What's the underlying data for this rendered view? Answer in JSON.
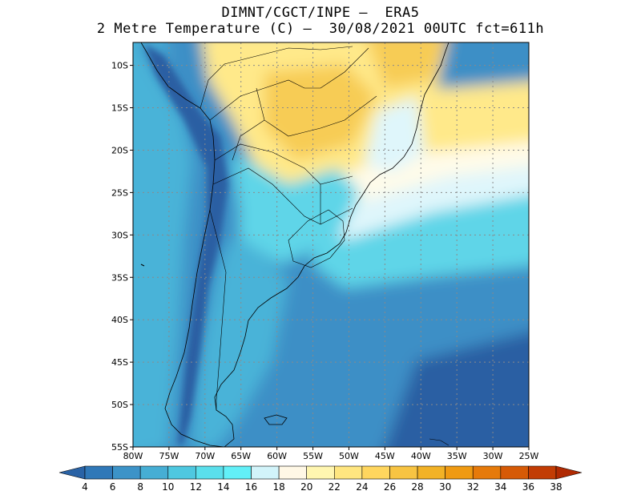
{
  "title_line1": "DIMNT/CGCT/INPE –  ERA5",
  "title_line2": "2 Metre Temperature (C) –  30/08/2021 00UTC fct=611h",
  "lat_labels": [
    "10S",
    "15S",
    "20S",
    "25S",
    "30S",
    "35S",
    "40S",
    "45S",
    "50S",
    "55S"
  ],
  "lat_values": [
    -10,
    -15,
    -20,
    -25,
    -30,
    -35,
    -40,
    -45,
    -50,
    -55
  ],
  "lon_labels": [
    "80W",
    "75W",
    "70W",
    "65W",
    "60W",
    "55W",
    "50W",
    "45W",
    "40W",
    "35W",
    "30W",
    "25W"
  ],
  "lon_values": [
    -80,
    -75,
    -70,
    -65,
    -60,
    -55,
    -50,
    -45,
    -40,
    -35,
    -30,
    -25
  ],
  "colorbar": {
    "labels": [
      "4",
      "6",
      "8",
      "10",
      "12",
      "14",
      "16",
      "18",
      "20",
      "22",
      "24",
      "26",
      "28",
      "30",
      "32",
      "34",
      "36",
      "38"
    ],
    "colors": [
      "#2a63a6",
      "#3078b8",
      "#3c93c8",
      "#46aed4",
      "#4ec8e0",
      "#5adfec",
      "#62f0f8",
      "#d2f4fa",
      "#fff8e6",
      "#fff6b0",
      "#ffe680",
      "#ffd65e",
      "#f8c442",
      "#f2b226",
      "#f09a12",
      "#e67a0a",
      "#d65a06",
      "#c23c04",
      "#b02a02"
    ]
  },
  "map_colors": {
    "deep": "#2b5fa3",
    "mid": "#3c8fc6",
    "light": "#49b3d8",
    "cyan": "#5ed5e8",
    "pale": "#dff6fb",
    "cream": "#fffbe9",
    "yellow": "#ffe98a",
    "gold": "#f7cc55"
  }
}
